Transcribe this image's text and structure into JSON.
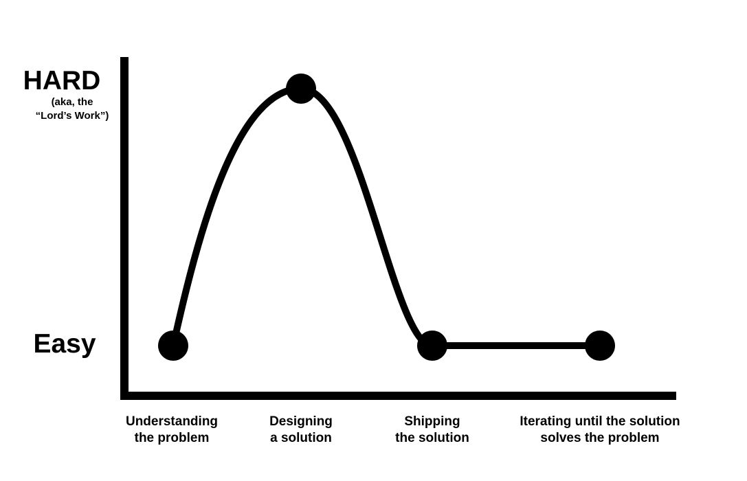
{
  "chart_data": {
    "type": "line",
    "categories": [
      "Understanding\nthe problem",
      "Designing\na solution",
      "Shipping\nthe solution",
      "Iterating until the solution\nsolves the problem"
    ],
    "values": [
      0,
      1,
      0,
      0
    ],
    "y_tick_labels": {
      "high": "HARD",
      "high_note": "(aka, the\n“Lord’s Work”)",
      "low": "Easy"
    },
    "ylim": [
      0,
      1
    ],
    "grid": false,
    "color": "#000000"
  }
}
